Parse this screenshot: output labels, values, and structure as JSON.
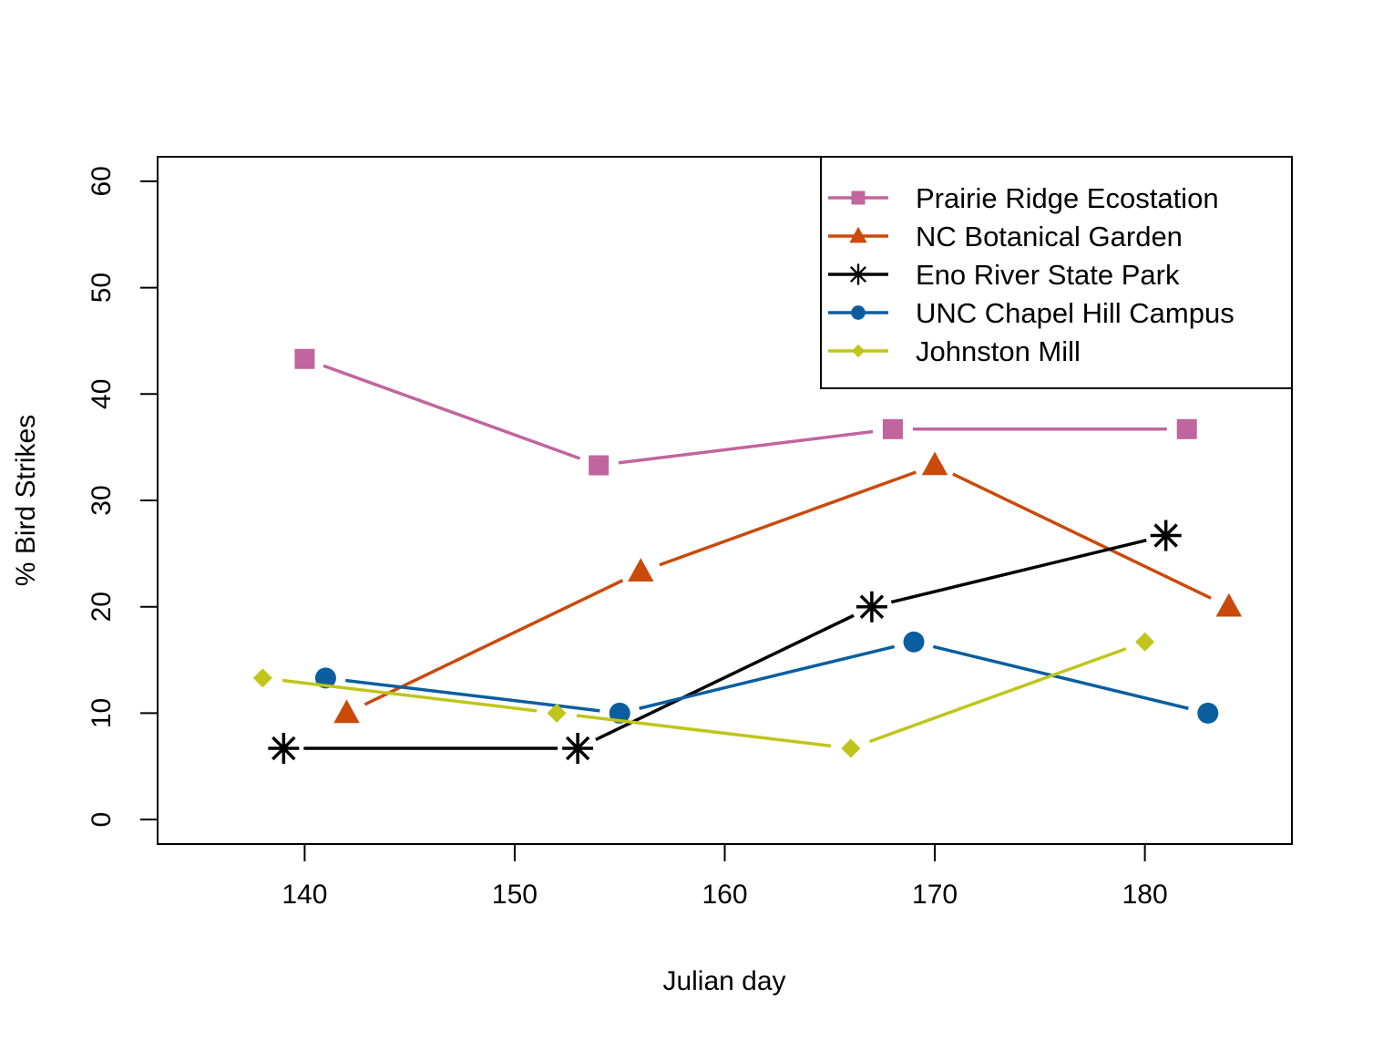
{
  "chart_data": {
    "type": "line",
    "title": "",
    "xlabel": "Julian day",
    "ylabel": "% Bird Strikes",
    "xlim": [
      133,
      187
    ],
    "ylim": [
      -2.3,
      62.3
    ],
    "xticks": [
      140,
      150,
      160,
      170,
      180
    ],
    "yticks": [
      0,
      10,
      20,
      30,
      40,
      50,
      60
    ],
    "grid": false,
    "legend_position": "top-right",
    "series": [
      {
        "name": "Prairie Ridge Ecostation",
        "color": "#C1659E",
        "marker": "square",
        "x": [
          140,
          154,
          168,
          182
        ],
        "y": [
          43.3,
          33.3,
          36.7,
          36.7
        ]
      },
      {
        "name": "NC Botanical Garden",
        "color": "#C94A0B",
        "marker": "triangle",
        "x": [
          142,
          156,
          170,
          184
        ],
        "y": [
          10,
          23.3,
          33.3,
          20
        ]
      },
      {
        "name": "Eno River State Park",
        "color": "#000000",
        "marker": "asterisk",
        "x": [
          139,
          153,
          167,
          181
        ],
        "y": [
          6.7,
          6.7,
          20,
          26.7
        ]
      },
      {
        "name": "UNC Chapel Hill Campus",
        "color": "#0A5E9E",
        "marker": "circle",
        "x": [
          141,
          155,
          169,
          183
        ],
        "y": [
          13.3,
          10,
          16.7,
          10
        ]
      },
      {
        "name": "Johnston Mill",
        "color": "#BFC51A",
        "marker": "diamond",
        "x": [
          138,
          152,
          166,
          180
        ],
        "y": [
          13.3,
          10,
          6.7,
          16.7
        ]
      }
    ]
  }
}
